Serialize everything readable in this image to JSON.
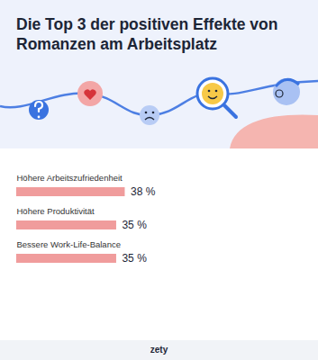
{
  "chart_data": {
    "type": "bar",
    "title": "Die Top 3 der positiven Effekte von Romanzen am Arbeitsplatz",
    "caption": "zety",
    "categories": [
      "Höhere Arbeitszufriedenheit",
      "Höhere Produktivität",
      "Bessere Work-Life-Balance"
    ],
    "values": [
      38,
      35,
      35
    ],
    "value_labels": [
      "38 %",
      "35 %",
      "35 %"
    ],
    "color": "#f09c9c",
    "orientation": "horizontal",
    "xlim": [
      0,
      100
    ],
    "data_labels": true,
    "tick_labels": false,
    "grid": false
  }
}
